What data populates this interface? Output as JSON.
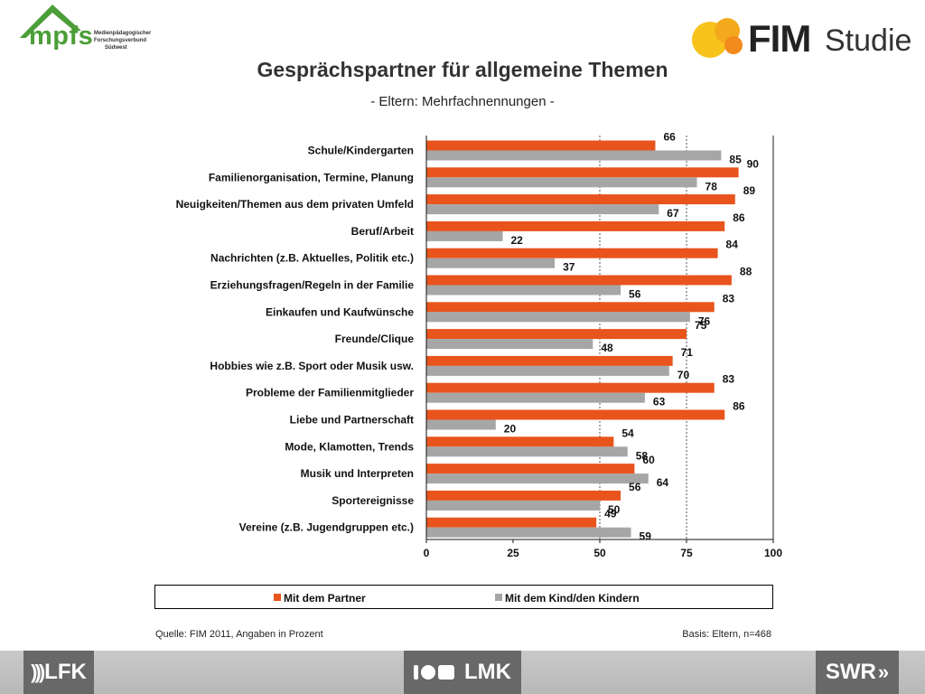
{
  "header": {
    "left_logo": {
      "text": "mpfs",
      "subtitle_lines": [
        "Medienpädagogischer",
        "Forschungsverbund",
        "Südwest"
      ]
    },
    "right_logo": {
      "text": "FIM",
      "text2": "Studie"
    }
  },
  "colors": {
    "partner": "#e8541c",
    "kind": "#a6a6a6",
    "accent_green": "#4b9e38",
    "logo_yellow": "#f7c21c"
  },
  "chart_data": {
    "type": "bar",
    "orientation": "horizontal",
    "title": "Gesprächspartner für allgemeine Themen",
    "subtitle": "- Eltern: Mehrfachnennungen -",
    "categories": [
      "Schule/Kindergarten",
      "Familienorganisation, Termine, Planung",
      "Neuigkeiten/Themen aus dem privaten Umfeld",
      "Beruf/Arbeit",
      "Nachrichten (z.B. Aktuelles, Politik etc.)",
      "Erziehungsfragen/Regeln in der Familie",
      "Einkaufen und Kaufwünsche",
      "Freunde/Clique",
      "Hobbies wie z.B. Sport oder Musik usw.",
      "Probleme der Familienmitglieder",
      "Liebe und Partnerschaft",
      "Mode, Klamotten, Trends",
      "Musik und Interpreten",
      "Sportereignisse",
      "Vereine (z.B. Jugendgruppen etc.)"
    ],
    "series": [
      {
        "name": "Mit dem Partner",
        "values": [
          66,
          90,
          89,
          86,
          84,
          88,
          83,
          75,
          71,
          83,
          86,
          54,
          60,
          56,
          49
        ]
      },
      {
        "name": "Mit dem Kind/den Kindern",
        "values": [
          85,
          78,
          67,
          22,
          37,
          56,
          76,
          48,
          70,
          63,
          20,
          58,
          64,
          50,
          59
        ]
      }
    ],
    "xlim": [
      0,
      100
    ],
    "xticks": [
      0,
      25,
      50,
      75,
      100
    ],
    "grid": "vertical dotted at 50 and 75, solid line at 100",
    "legend_position": "bottom"
  },
  "footer": {
    "source": "Quelle: FIM 2011, Angaben in Prozent",
    "basis": "Basis: Eltern, n=468",
    "logos": {
      "lfk": "LFK",
      "lmk": "LMK",
      "swr": "SWR"
    }
  }
}
